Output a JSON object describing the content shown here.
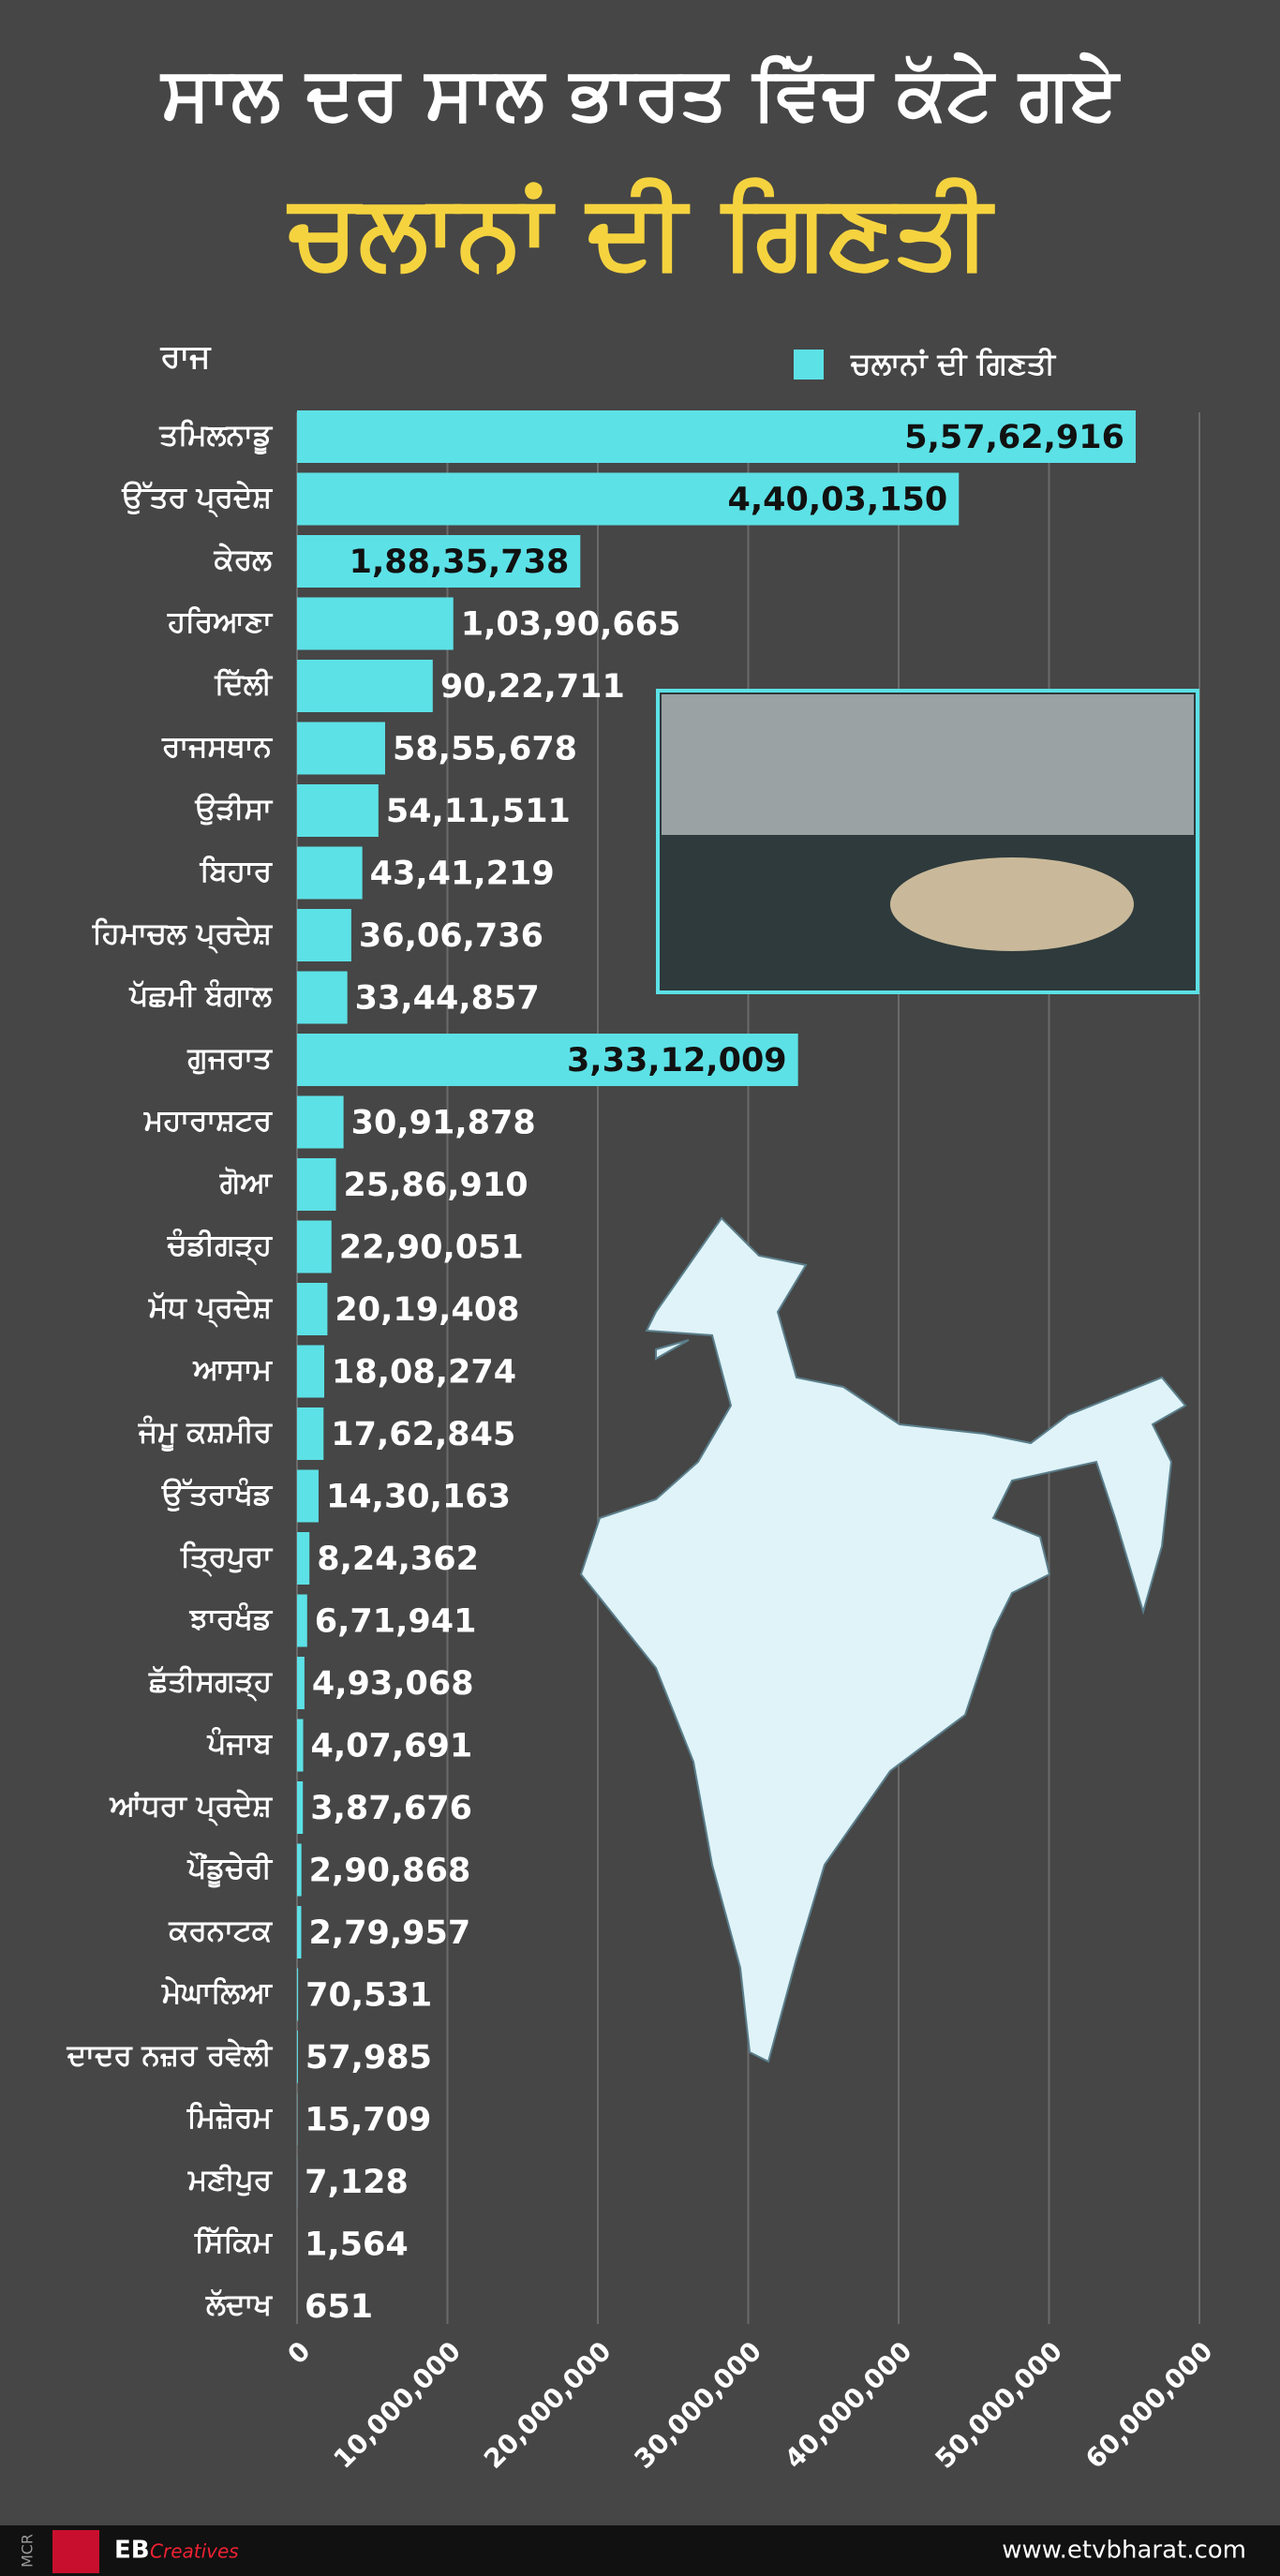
{
  "chart_data": {
    "type": "hbar",
    "title": "ਸਾਲ ਦਰ ਸਾਲ ਭਾਰਤ ਵਿੱਚ ਕੱਟੇ ਗਏ",
    "subtitle": "ਚਲਾਨਾਂ ਦੀ ਗਿਣਤੀ",
    "y_label": "ਰਾਜ",
    "categories": [
      "ਤਮਿਲਨਾਡੂ",
      "ਉੱਤਰ ਪ੍ਰਦੇਸ਼",
      "ਕੇਰਲ",
      "ਹਰਿਆਣਾ",
      "ਦਿੱਲੀ",
      "ਰਾਜਸਥਾਨ",
      "ਉੜੀਸਾ",
      "ਬਿਹਾਰ",
      "ਹਿਮਾਚਲ ਪ੍ਰਦੇਸ਼",
      "ਪੱਛਮੀ ਬੰਗਾਲ",
      "ਗੁਜਰਾਤ",
      "ਮਹਾਰਾਸ਼ਟਰ",
      "ਗੋਆ",
      "ਚੰਡੀਗੜ੍ਹ",
      "ਮੱਧ ਪ੍ਰਦੇਸ਼",
      "ਆਸਾਮ",
      "ਜੰਮੂ ਕਸ਼ਮੀਰ",
      "ਉੱਤਰਾਖੰਡ",
      "ਤ੍ਰਿਪੁਰਾ",
      "ਝਾਰਖੰਡ",
      "ਛੱਤੀਸਗੜ੍ਹ",
      "ਪੰਜਾਬ",
      "ਆਂਧਰਾ ਪ੍ਰਦੇਸ਼",
      "ਪੌਂਡੂਚੇਰੀ",
      "ਕਰਨਾਟਕ",
      "ਮੇਘਾਲਿਆ",
      "ਦਾਦਰ ਨਜ਼ਰ ਰਵੇਲੀ",
      "ਮਿਜ਼ੋਰਮ",
      "ਮਣੀਪੁਰ",
      "ਸਿੱਕਿਮ",
      "ਲੱਦਾਖ"
    ],
    "series": [
      {
        "name": "ਚਲਾਨਾਂ ਦੀ ਗਿਣਤੀ",
        "color": "#5ce1e6",
        "values": [
          55762916,
          44003150,
          18835738,
          10390665,
          9022711,
          5855678,
          5411511,
          4341219,
          3606736,
          3344857,
          33312009,
          3091878,
          2586910,
          2290051,
          2019408,
          1808274,
          1762845,
          1430163,
          824362,
          671941,
          493068,
          407691,
          387676,
          290868,
          279957,
          70531,
          57985,
          15709,
          7128,
          1564,
          651
        ],
        "value_labels": [
          "5,57,62,916",
          "4,40,03,150",
          "1,88,35,738",
          "1,03,90,665",
          "90,22,711",
          "58,55,678",
          "54,11,511",
          "43,41,219",
          "36,06,736",
          "33,44,857",
          "3,33,12,009",
          "30,91,878",
          "25,86,910",
          "22,90,051",
          "20,19,408",
          "18,08,274",
          "17,62,845",
          "14,30,163",
          "8,24,362",
          "6,71,941",
          "4,93,068",
          "4,07,691",
          "3,87,676",
          "2,90,868",
          "2,79,957",
          "70,531",
          "57,985",
          "15,709",
          "7,128",
          "1,564",
          "651"
        ]
      }
    ],
    "xlim": [
      0,
      60000000
    ],
    "xticks": [
      0,
      {
        "value": 10000000,
        "label": "10,000,000"
      },
      {
        "value": 20000000,
        "label": "20,000,000"
      },
      {
        "value": 30000000,
        "label": "30,000,000"
      },
      {
        "value": 40000000,
        "label": "40,000,000"
      },
      {
        "value": 50000000,
        "label": "50,000,000"
      },
      {
        "value": 60000000,
        "label": "60,000,000"
      }
    ],
    "grid": true,
    "legend": "top-right"
  },
  "footer": {
    "code": "MCR",
    "brand": "EB",
    "brand_sub": "Creatives",
    "url": "www.etvbharat.com"
  }
}
